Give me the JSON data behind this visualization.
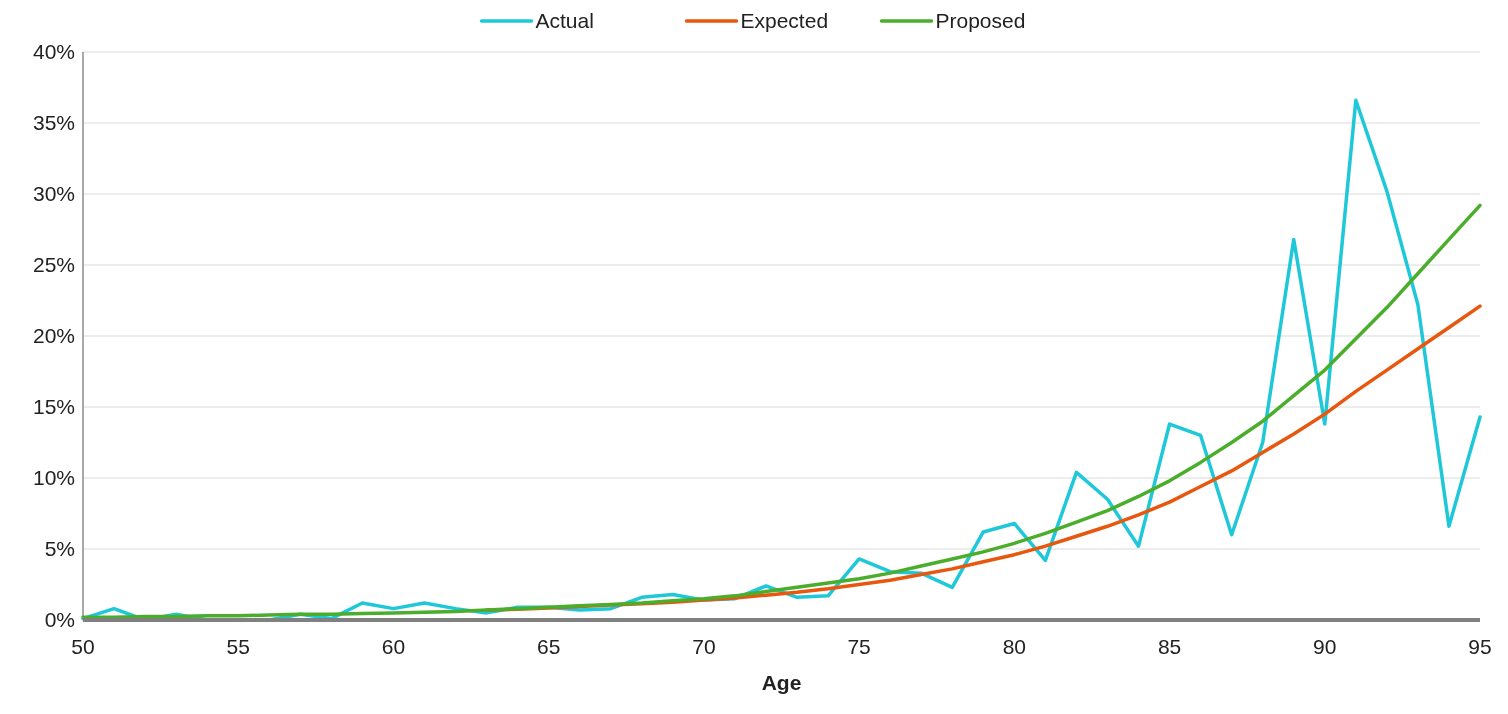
{
  "chart_data": {
    "type": "line",
    "xlabel": "Age",
    "x": [
      50,
      51,
      52,
      53,
      54,
      55,
      56,
      57,
      58,
      59,
      60,
      61,
      62,
      63,
      64,
      65,
      66,
      67,
      68,
      69,
      70,
      71,
      72,
      73,
      74,
      75,
      76,
      77,
      78,
      79,
      80,
      81,
      82,
      83,
      84,
      85,
      86,
      87,
      88,
      89,
      90,
      91,
      92,
      93,
      94,
      95
    ],
    "xlim": [
      50,
      95
    ],
    "xticks": [
      50,
      55,
      60,
      65,
      70,
      75,
      80,
      85,
      90,
      95
    ],
    "ylim": [
      0,
      40
    ],
    "yticks": [
      {
        "value": 0,
        "label": "0%"
      },
      {
        "value": 5,
        "label": "5%"
      },
      {
        "value": 10,
        "label": "10%"
      },
      {
        "value": 15,
        "label": "15%"
      },
      {
        "value": 20,
        "label": "20%"
      },
      {
        "value": 25,
        "label": "25%"
      },
      {
        "value": 30,
        "label": "30%"
      },
      {
        "value": 35,
        "label": "35%"
      },
      {
        "value": 40,
        "label": "40%"
      }
    ],
    "grid": "y",
    "legend": "top",
    "marker": "none",
    "line_style": "solid",
    "series": [
      {
        "name": "Actual",
        "color": "#1ec8d8",
        "values": [
          0.1,
          0.8,
          0.0,
          0.4,
          0.0,
          0.0,
          0.0,
          0.4,
          0.1,
          1.2,
          0.8,
          1.2,
          0.8,
          0.5,
          0.9,
          0.9,
          0.7,
          0.8,
          1.6,
          1.8,
          1.4,
          1.5,
          2.4,
          1.6,
          1.7,
          4.3,
          3.4,
          3.3,
          2.3,
          6.2,
          6.8,
          4.2,
          10.4,
          8.5,
          5.2,
          13.8,
          13.0,
          6.0,
          12.5,
          26.8,
          13.8,
          36.6,
          30.2,
          22.2,
          6.6,
          14.3
        ]
      },
      {
        "name": "Expected",
        "color": "#e8570e",
        "values": [
          null,
          null,
          null,
          null,
          null,
          null,
          null,
          null,
          null,
          null,
          null,
          null,
          null,
          0.7,
          0.75,
          0.85,
          0.95,
          1.05,
          1.15,
          1.25,
          1.4,
          1.55,
          1.75,
          1.95,
          2.2,
          2.5,
          2.8,
          3.2,
          3.6,
          4.1,
          4.6,
          5.2,
          5.9,
          6.6,
          7.4,
          8.3,
          9.4,
          10.5,
          11.8,
          13.1,
          14.5,
          16.1,
          17.6,
          19.1,
          20.6,
          22.1
        ]
      },
      {
        "name": "Proposed",
        "color": "#4aad2c",
        "values": [
          0.2,
          0.2,
          0.25,
          0.25,
          0.3,
          0.3,
          0.35,
          0.4,
          0.4,
          0.45,
          0.5,
          0.55,
          0.6,
          0.7,
          0.8,
          0.9,
          1.0,
          1.1,
          1.2,
          1.35,
          1.5,
          1.7,
          2.0,
          2.3,
          2.6,
          2.9,
          3.3,
          3.8,
          4.3,
          4.8,
          5.4,
          6.1,
          6.9,
          7.7,
          8.7,
          9.8,
          11.1,
          12.5,
          14.0,
          15.8,
          17.6,
          19.8,
          22.0,
          24.4,
          26.8,
          29.2
        ]
      }
    ]
  }
}
